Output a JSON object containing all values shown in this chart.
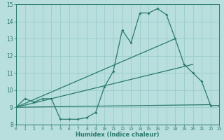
{
  "xlabel": "Humidex (Indice chaleur)",
  "bg_color": "#b8dede",
  "grid_color": "#9ecece",
  "line_color": "#2a7a6a",
  "xlim": [
    0,
    23
  ],
  "ylim": [
    8,
    15
  ],
  "yticks": [
    8,
    9,
    10,
    11,
    12,
    13,
    14,
    15
  ],
  "xticks": [
    0,
    1,
    2,
    3,
    4,
    5,
    6,
    7,
    8,
    9,
    10,
    11,
    12,
    13,
    14,
    15,
    16,
    17,
    18,
    19,
    20,
    21,
    22,
    23
  ],
  "curve_main_x": [
    0,
    1,
    2,
    3,
    4,
    5,
    6,
    7,
    8,
    9,
    10,
    11,
    12,
    13,
    14,
    15,
    16,
    17,
    18,
    19,
    20,
    21,
    22,
    23
  ],
  "curve_main_y": [
    9.0,
    9.5,
    9.3,
    9.5,
    9.5,
    8.3,
    8.3,
    8.3,
    8.4,
    8.7,
    10.2,
    11.1,
    13.5,
    12.75,
    14.5,
    14.5,
    14.75,
    14.4,
    13.0,
    11.5,
    11.0,
    10.5,
    9.1,
    9.1
  ],
  "line1_x": [
    0,
    18
  ],
  "line1_y": [
    9.0,
    13.0
  ],
  "line2_x": [
    0,
    20
  ],
  "line2_y": [
    9.0,
    11.5
  ],
  "line3_x": [
    0,
    22
  ],
  "line3_y": [
    9.0,
    9.15
  ]
}
